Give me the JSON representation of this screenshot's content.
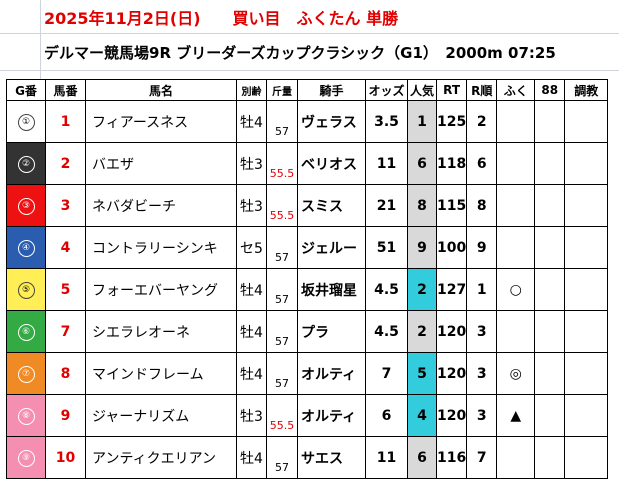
{
  "header": {
    "title": "2025年11月2日(日)　　買い目　ふくたん 単勝",
    "race": "デルマー競馬場9R ブリーダーズカップクラシック（G1）　2000m 07:25"
  },
  "columns": [
    "G番",
    "馬番",
    "馬名",
    "別齢",
    "斤量",
    "騎手",
    "オッズ",
    "人気",
    "RT",
    "R順",
    "ふく",
    "88",
    "調教"
  ],
  "colors": {
    "accent_red": "#e00000",
    "popularity_highlight": "#33ccdd",
    "popularity_normal": "#d9d9d9"
  },
  "rows": [
    {
      "gate": "①",
      "gate_bg": "#ffffff",
      "gate_fg": "#000000",
      "num": "1",
      "name": "フィアースネス",
      "sexage": "牡4",
      "weight": "57",
      "weight_red": false,
      "jockey": "ヴェラス",
      "odds": "3.5",
      "ninki": "1",
      "ninki_hl": false,
      "rt": "125",
      "rrank": "2",
      "mark": "",
      "c88": "",
      "chokyo": ""
    },
    {
      "gate": "②",
      "gate_bg": "#333333",
      "gate_fg": "#ffffff",
      "num": "2",
      "name": "バエザ",
      "sexage": "牡3",
      "weight": "55.5",
      "weight_red": true,
      "jockey": "ベリオス",
      "odds": "11",
      "ninki": "6",
      "ninki_hl": false,
      "rt": "118",
      "rrank": "6",
      "mark": "",
      "c88": "",
      "chokyo": ""
    },
    {
      "gate": "③",
      "gate_bg": "#ee1111",
      "gate_fg": "#ffffff",
      "num": "3",
      "name": "ネバダビーチ",
      "sexage": "牡3",
      "weight": "55.5",
      "weight_red": true,
      "jockey": "スミス",
      "odds": "21",
      "ninki": "8",
      "ninki_hl": false,
      "rt": "115",
      "rrank": "8",
      "mark": "",
      "c88": "",
      "chokyo": ""
    },
    {
      "gate": "④",
      "gate_bg": "#2a5db0",
      "gate_fg": "#ffffff",
      "num": "4",
      "name": "コントラリーシンキ",
      "sexage": "セ5",
      "weight": "57",
      "weight_red": false,
      "jockey": "ジェルー",
      "odds": "51",
      "ninki": "9",
      "ninki_hl": false,
      "rt": "100",
      "rrank": "9",
      "mark": "",
      "c88": "",
      "chokyo": ""
    },
    {
      "gate": "⑤",
      "gate_bg": "#ffee55",
      "gate_fg": "#000000",
      "num": "5",
      "name": "フォーエバーヤング",
      "sexage": "牡4",
      "weight": "57",
      "weight_red": false,
      "jockey": "坂井瑠星",
      "odds": "4.5",
      "ninki": "2",
      "ninki_hl": true,
      "rt": "127",
      "rrank": "1",
      "mark": "○",
      "c88": "",
      "chokyo": ""
    },
    {
      "gate": "⑥",
      "gate_bg": "#33aa44",
      "gate_fg": "#ffffff",
      "num": "7",
      "name": "シエラレオーネ",
      "sexage": "牡4",
      "weight": "57",
      "weight_red": false,
      "jockey": "プラ",
      "odds": "4.5",
      "ninki": "2",
      "ninki_hl": false,
      "rt": "120",
      "rrank": "3",
      "mark": "",
      "c88": "",
      "chokyo": ""
    },
    {
      "gate": "⑦",
      "gate_bg": "#f08a24",
      "gate_fg": "#ffffff",
      "num": "8",
      "name": "マインドフレーム",
      "sexage": "牡4",
      "weight": "57",
      "weight_red": false,
      "jockey": "オルティ",
      "odds": "7",
      "ninki": "5",
      "ninki_hl": true,
      "rt": "120",
      "rrank": "3",
      "mark": "◎",
      "c88": "",
      "chokyo": ""
    },
    {
      "gate": "⑧",
      "gate_bg": "#f48fb1",
      "gate_fg": "#ffffff",
      "num": "9",
      "name": "ジャーナリズム",
      "sexage": "牡3",
      "weight": "55.5",
      "weight_red": true,
      "jockey": "オルティ",
      "odds": "6",
      "ninki": "4",
      "ninki_hl": true,
      "rt": "120",
      "rrank": "3",
      "mark": "▲",
      "c88": "",
      "chokyo": ""
    },
    {
      "gate": "⑨",
      "gate_bg": "#f48fb1",
      "gate_fg": "#ffffff",
      "num": "10",
      "name": "アンティクエリアン",
      "sexage": "牡4",
      "weight": "57",
      "weight_red": false,
      "jockey": "サエス",
      "odds": "11",
      "ninki": "6",
      "ninki_hl": false,
      "rt": "116",
      "rrank": "7",
      "mark": "",
      "c88": "",
      "chokyo": ""
    }
  ]
}
